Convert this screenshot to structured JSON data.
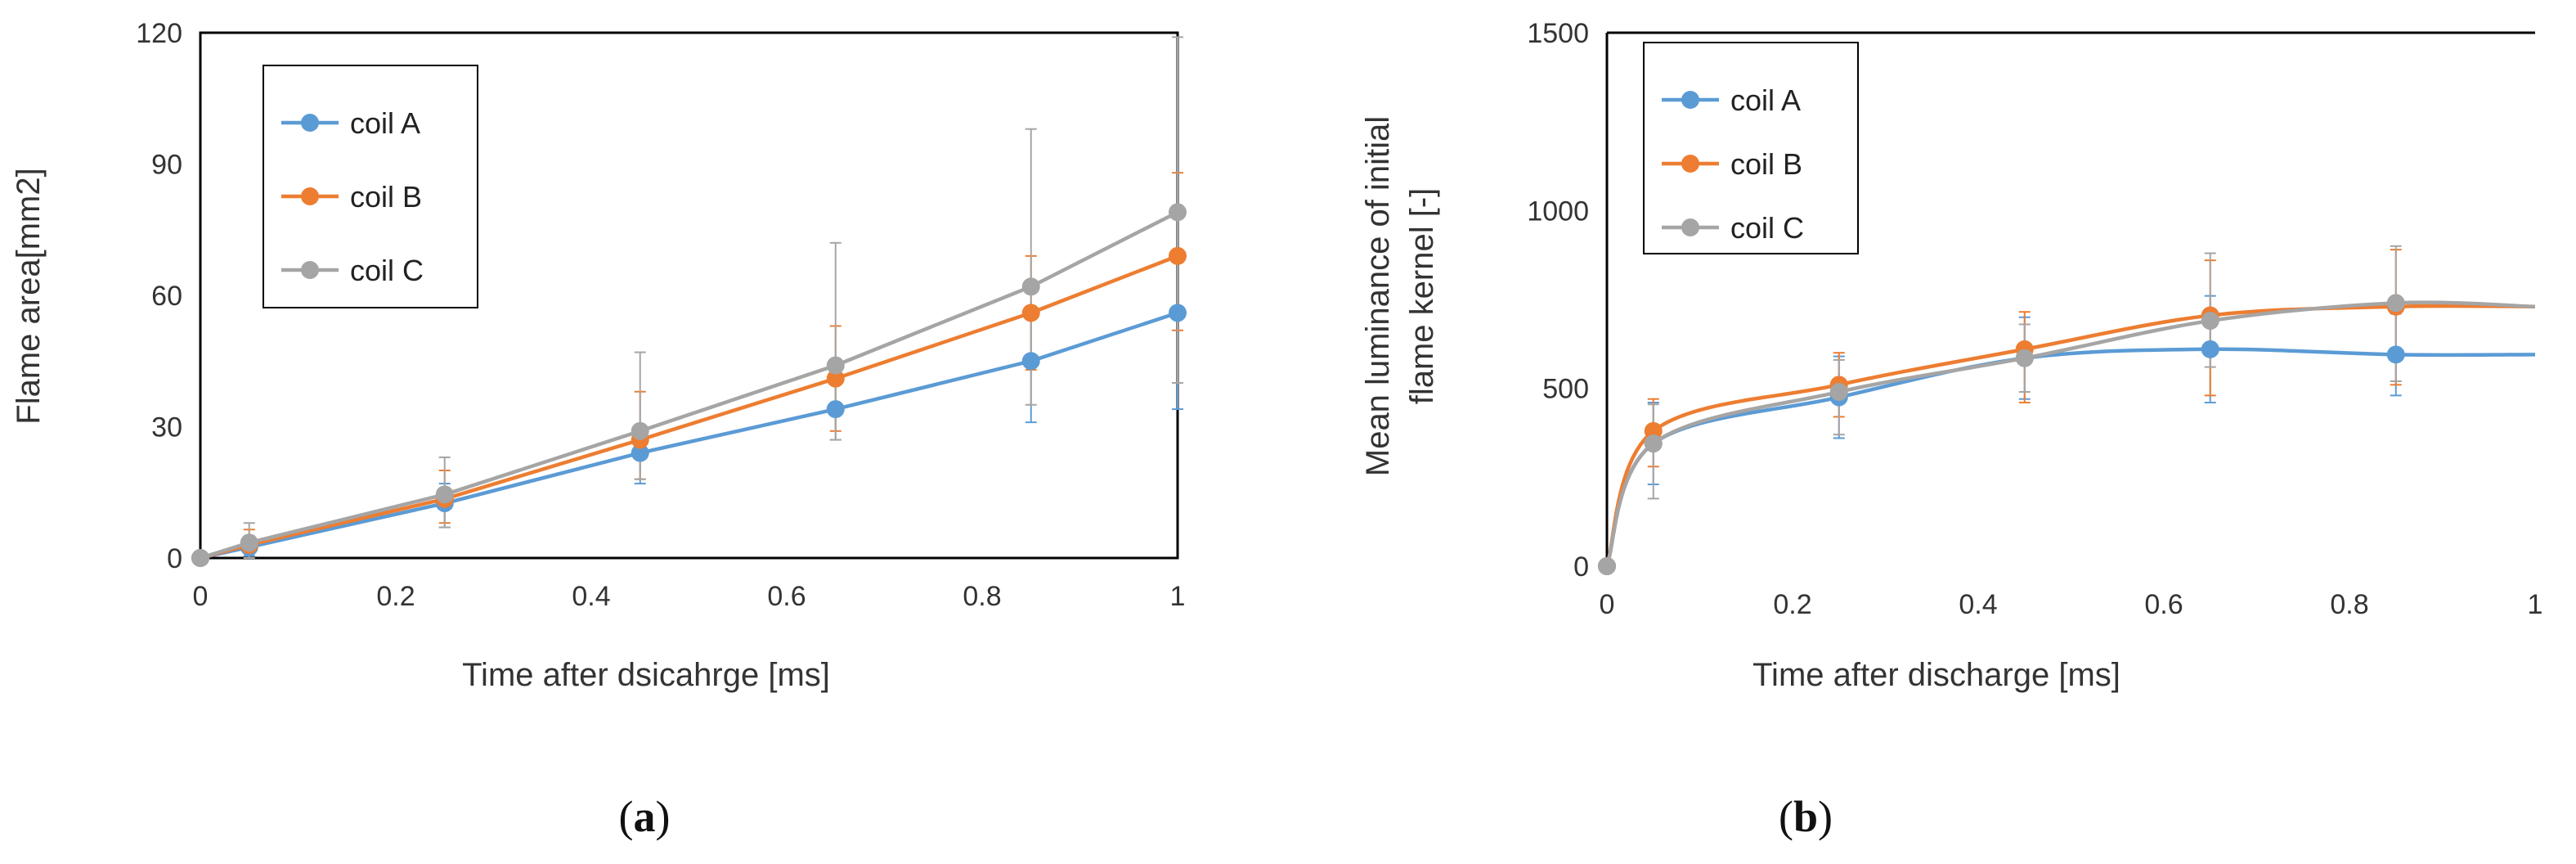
{
  "colors": {
    "coil_a": "#5b9bd5",
    "coil_b": "#ed7d31",
    "coil_c": "#a5a5a5",
    "axis": "#000000"
  },
  "captions": {
    "a_pre": "(",
    "a_letter": "a",
    "a_post": ")",
    "b_pre": "(",
    "b_letter": "b",
    "b_post": ")"
  },
  "chart_data": [
    {
      "type": "line",
      "panel": "a",
      "xlabel": "Time after dsicahrge [ms]",
      "ylabel": "Flame area[mm2]",
      "xlim": [
        0,
        1
      ],
      "ylim": [
        0,
        120
      ],
      "xticks": [
        "0",
        "0.2",
        "0.4",
        "0.6",
        "0.8",
        "1"
      ],
      "yticks": [
        "0",
        "30",
        "60",
        "90",
        "120"
      ],
      "legend_position": "top-left",
      "x": [
        0,
        0.05,
        0.25,
        0.45,
        0.65,
        0.85,
        1.0
      ],
      "series": [
        {
          "name": "coil A",
          "color": "#5b9bd5",
          "values": [
            0,
            2.5,
            12.5,
            24,
            34,
            45,
            56
          ],
          "err_low": [
            0,
            0.5,
            7,
            17,
            27,
            31,
            34
          ],
          "err_high": [
            0,
            5,
            17,
            30,
            42,
            57,
            68
          ]
        },
        {
          "name": "coil B",
          "color": "#ed7d31",
          "values": [
            0,
            3,
            13.5,
            27,
            41,
            56,
            69
          ],
          "err_low": [
            0,
            1,
            8,
            18,
            29,
            43,
            52
          ],
          "err_high": [
            0,
            6.5,
            20,
            38,
            53,
            69,
            88
          ]
        },
        {
          "name": "coil C",
          "color": "#a5a5a5",
          "values": [
            0,
            3.5,
            14.5,
            29,
            44,
            62,
            79
          ],
          "err_low": [
            0,
            0,
            7,
            18,
            27,
            35,
            40
          ],
          "err_high": [
            0,
            8,
            23,
            47,
            72,
            98,
            119
          ]
        }
      ]
    },
    {
      "type": "line",
      "panel": "b",
      "xlabel": "Time after discharge [ms]",
      "ylabel_line1": "Mean luminance of initial",
      "ylabel_line2": "flame kernel [-]",
      "xlim": [
        0,
        1
      ],
      "ylim": [
        0,
        1500
      ],
      "xticks": [
        "0",
        "0.2",
        "0.4",
        "0.6",
        "0.8",
        "1"
      ],
      "yticks": [
        "0",
        "500",
        "1000",
        "1500"
      ],
      "legend_position": "top-left",
      "x": [
        0,
        0.05,
        0.25,
        0.45,
        0.65,
        0.85,
        1.0
      ],
      "series": [
        {
          "name": "coil A",
          "color": "#5b9bd5",
          "values": [
            0,
            345,
            475,
            585,
            610,
            595,
            595
          ],
          "err_low": [
            0,
            230,
            360,
            470,
            460,
            480,
            null
          ],
          "err_high": [
            0,
            460,
            590,
            700,
            760,
            710,
            null
          ]
        },
        {
          "name": "coil B",
          "color": "#ed7d31",
          "values": [
            0,
            380,
            510,
            610,
            705,
            730,
            730
          ],
          "err_low": [
            0,
            280,
            420,
            460,
            480,
            510,
            null
          ],
          "err_high": [
            0,
            470,
            600,
            715,
            860,
            890,
            null
          ]
        },
        {
          "name": "coil C",
          "color": "#a5a5a5",
          "values": [
            0,
            345,
            490,
            585,
            690,
            740,
            730
          ],
          "err_low": [
            0,
            190,
            370,
            490,
            560,
            520,
            null
          ],
          "err_high": [
            0,
            455,
            580,
            680,
            880,
            900,
            null
          ]
        }
      ]
    }
  ]
}
